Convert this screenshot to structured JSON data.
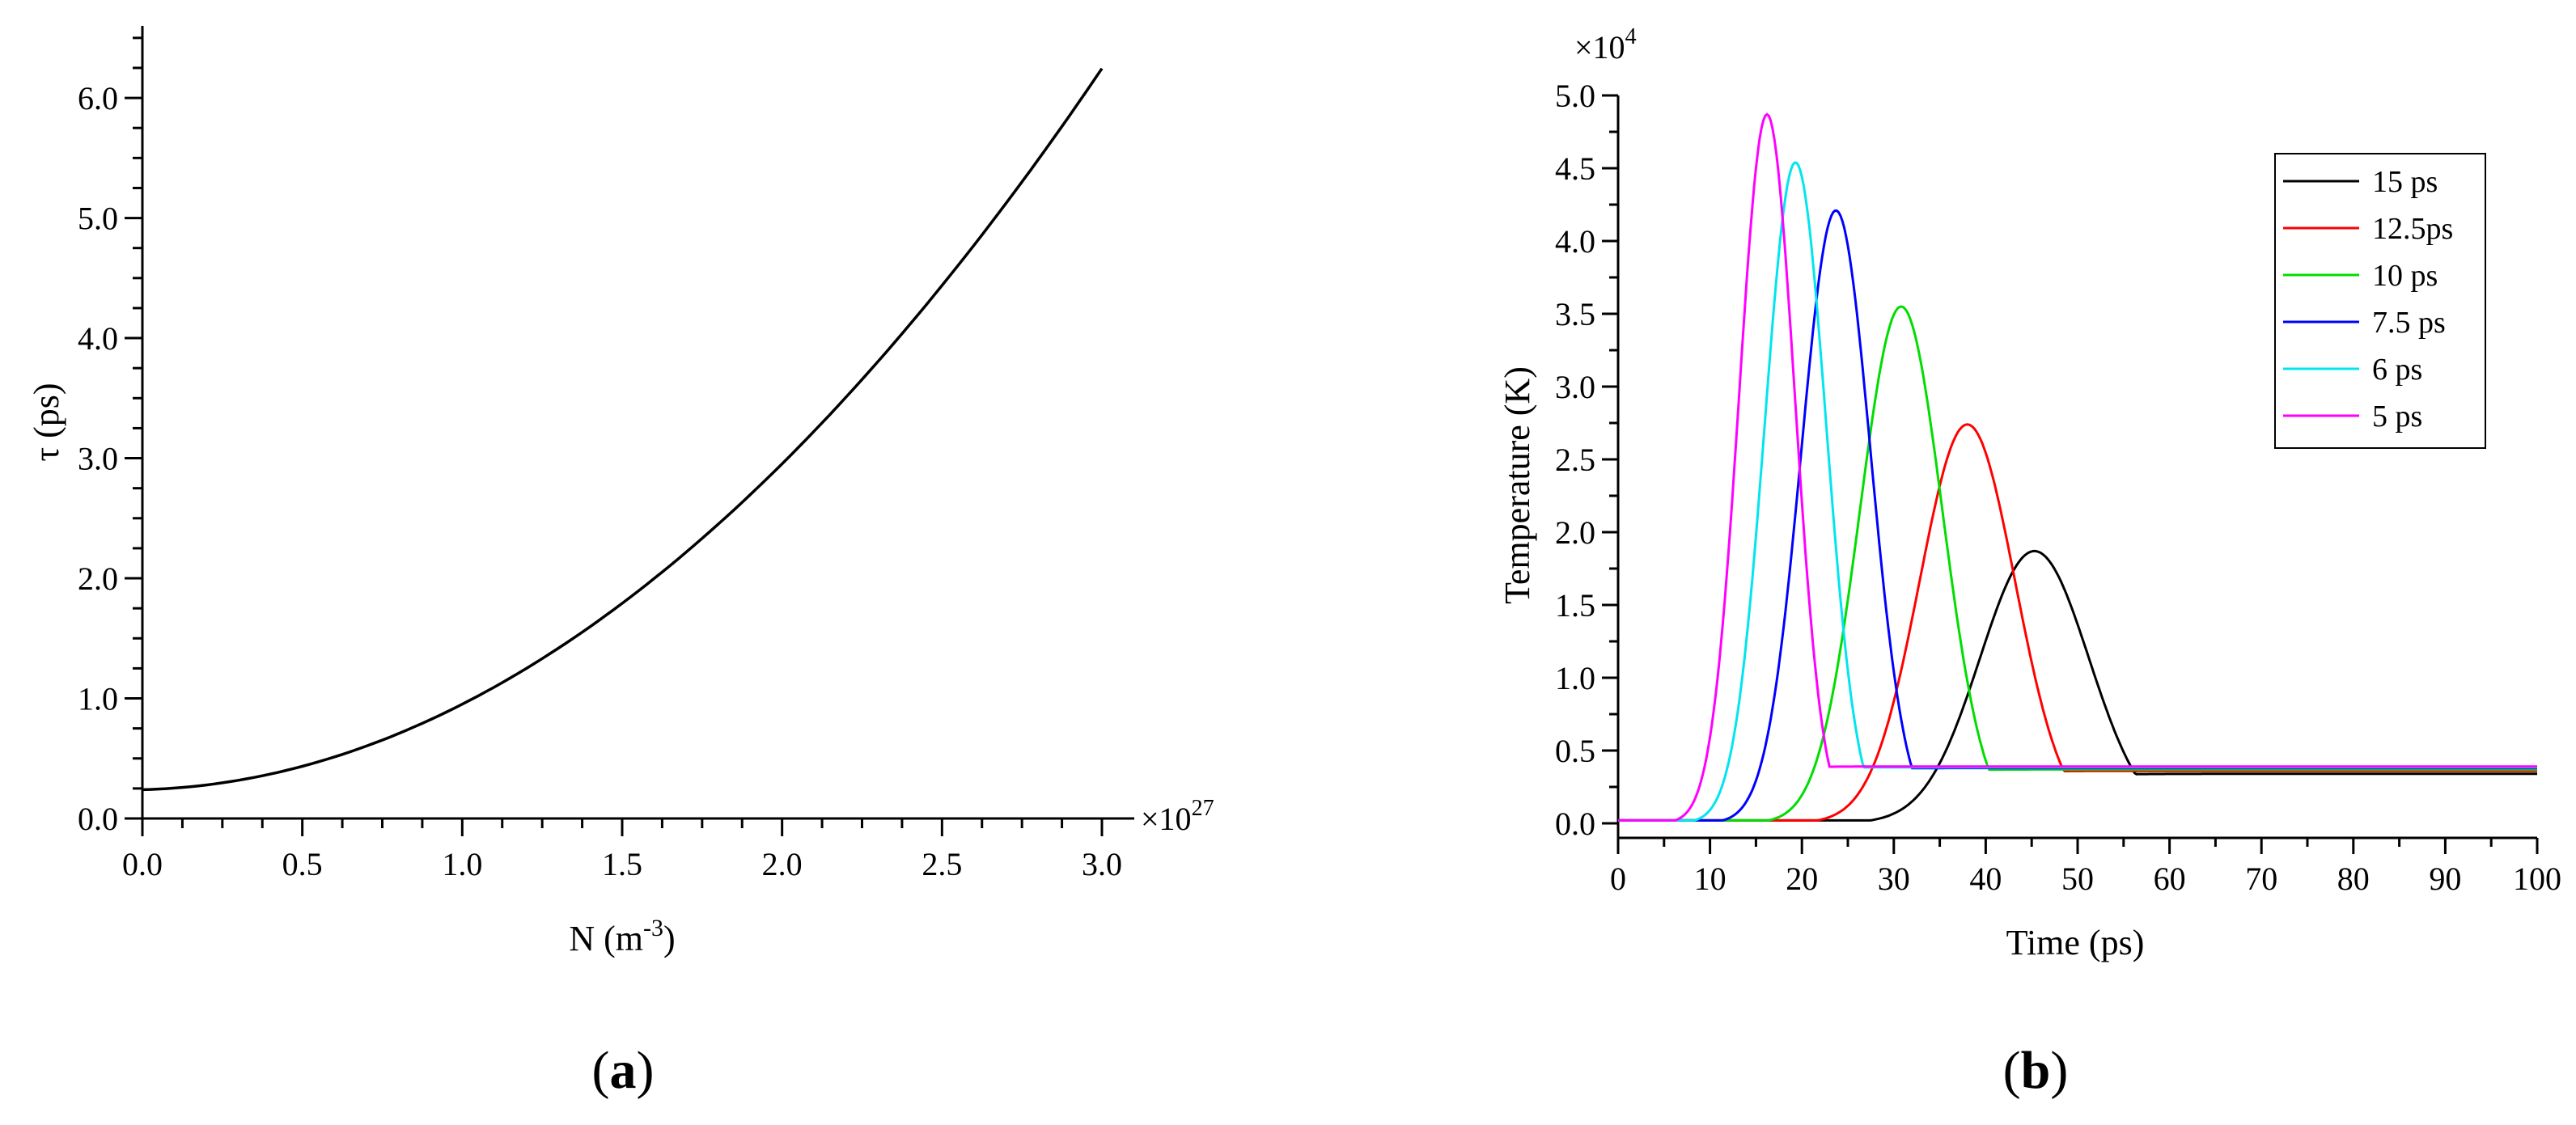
{
  "chart_data": [
    {
      "id": "a",
      "type": "line",
      "panel_label": "a",
      "xlabel": "N (m-3)",
      "xlabel_parts": {
        "base": "N (m",
        "sup": "-3",
        "close": ")"
      },
      "ylabel": "τ (ps)",
      "x_multiplier": {
        "base": "×10",
        "exp": "27"
      },
      "xlim": [
        0,
        3.0
      ],
      "ylim": [
        0,
        6.6
      ],
      "xticks": [
        "0.0",
        "0.5",
        "1.0",
        "1.5",
        "2.0",
        "2.5",
        "3.0"
      ],
      "yticks": [
        "0.0",
        "1.0",
        "2.0",
        "3.0",
        "4.0",
        "5.0",
        "6.0"
      ],
      "series": [
        {
          "color": "#000000",
          "x": [
            0,
            0.25,
            0.5,
            0.75,
            1.0,
            1.25,
            1.5,
            1.75,
            2.0,
            2.25,
            2.5,
            2.75,
            3.0
          ],
          "y": [
            0.24,
            0.28,
            0.4,
            0.6,
            0.9,
            1.25,
            1.68,
            2.18,
            2.75,
            3.42,
            4.2,
            5.15,
            6.25
          ]
        }
      ]
    },
    {
      "id": "b",
      "type": "line",
      "panel_label": "b",
      "xlabel": "Time (ps)",
      "ylabel": "Temperature (K)",
      "y_multiplier": {
        "base": "×10",
        "exp": "4"
      },
      "xlim": [
        0,
        100
      ],
      "ylim": [
        -0.1,
        5.0
      ],
      "xticks": [
        "0",
        "10",
        "20",
        "30",
        "40",
        "50",
        "60",
        "70",
        "80",
        "90",
        "100"
      ],
      "yticks": [
        "0.0",
        "0.5",
        "1.0",
        "1.5",
        "2.0",
        "2.5",
        "3.0",
        "3.5",
        "4.0",
        "4.5",
        "5.0"
      ],
      "legend_position": "top-right",
      "series": [
        {
          "name": "15 ps",
          "color": "#000000",
          "peak_x": 45.3,
          "peak_y": 1.87,
          "baseline": 0.34
        },
        {
          "name": "12.5ps",
          "color": "#ff0000",
          "peak_x": 38.0,
          "peak_y": 2.74,
          "baseline": 0.36
        },
        {
          "name": "10 ps",
          "color": "#00dd00",
          "peak_x": 30.8,
          "peak_y": 3.55,
          "baseline": 0.37
        },
        {
          "name": "7.5 ps",
          "color": "#0000ff",
          "peak_x": 23.7,
          "peak_y": 4.21,
          "baseline": 0.38
        },
        {
          "name": "6 ps",
          "color": "#00e5ee",
          "peak_x": 19.3,
          "peak_y": 4.54,
          "baseline": 0.385
        },
        {
          "name": "5 ps",
          "color": "#ff00ff",
          "peak_x": 16.2,
          "peak_y": 4.87,
          "baseline": 0.39
        }
      ]
    }
  ]
}
